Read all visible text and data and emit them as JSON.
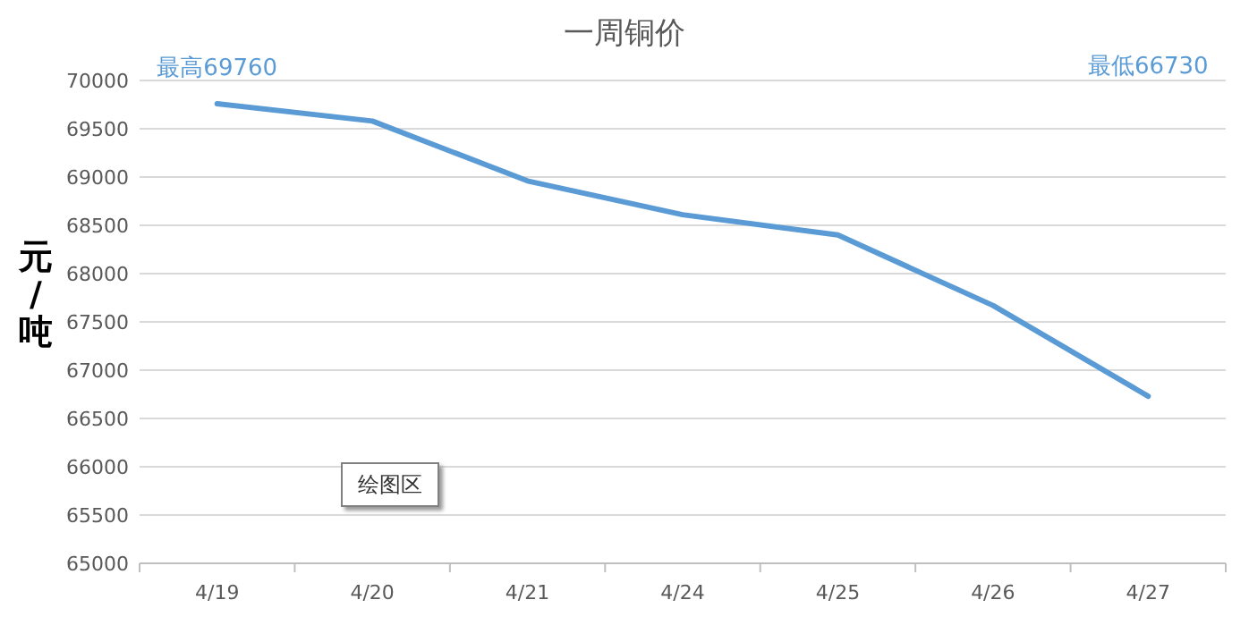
{
  "chart_data": {
    "type": "line",
    "title": "一周铜价",
    "ylabel": "元/吨",
    "categories": [
      "4/19",
      "4/20",
      "4/21",
      "4/24",
      "4/25",
      "4/26",
      "4/27"
    ],
    "series": [
      {
        "color": "#5b9bd5",
        "values": [
          69760,
          69580,
          68960,
          68610,
          68400,
          67670,
          66730
        ]
      }
    ],
    "ylim": [
      65000,
      70000
    ],
    "yticks": [
      65000,
      65500,
      66000,
      66500,
      67000,
      67500,
      68000,
      68500,
      69000,
      69500,
      70000
    ],
    "grid": "y",
    "marker": "none",
    "line_style": "solid",
    "annotations": [
      "最高69760",
      "最低66730",
      "绘图区"
    ]
  }
}
